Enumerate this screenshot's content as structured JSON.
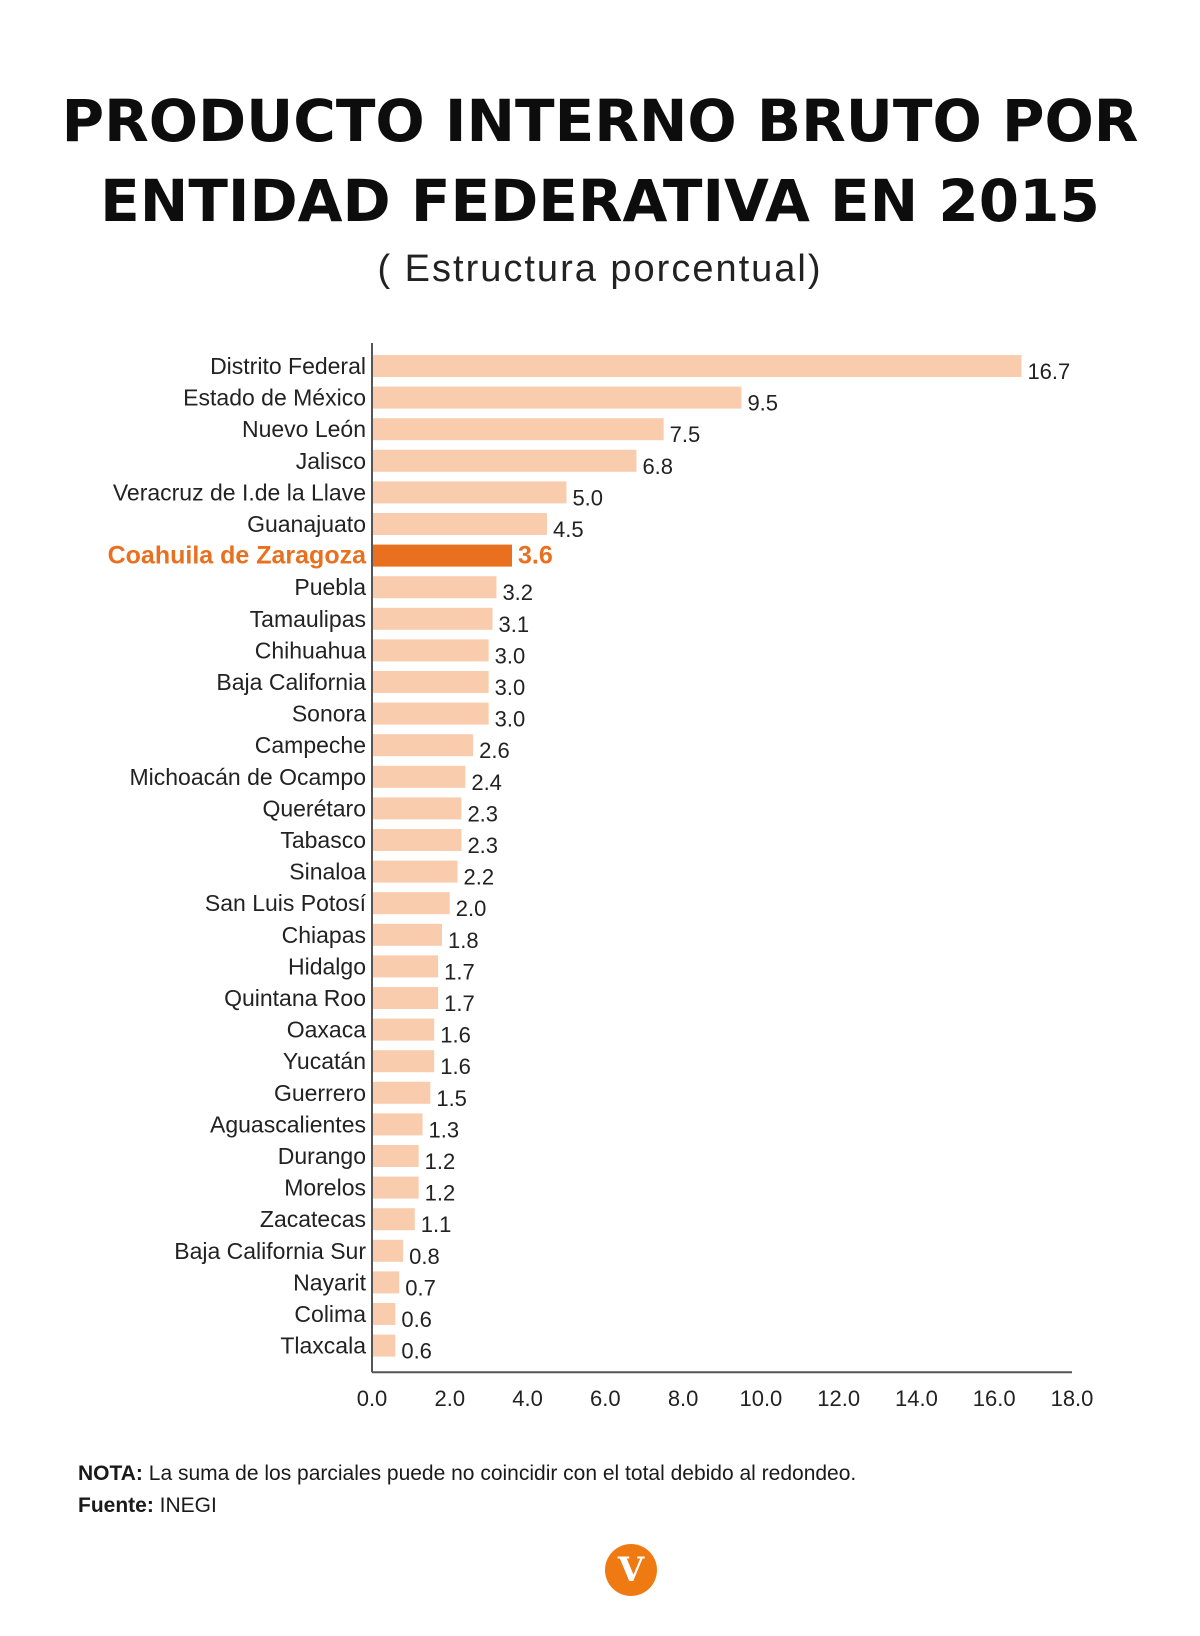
{
  "header": {
    "title_line_1": "PRODUCTO INTERNO BRUTO POR",
    "title_line_2": "ENTIDAD FEDERATIVA EN 2015",
    "subtitle": "( Estructura porcentual)"
  },
  "colors": {
    "bar": "#f9ccad",
    "highlight": "#e8701f",
    "axis": "#555555",
    "logo": "#f07a12"
  },
  "chart_data": {
    "type": "bar",
    "orientation": "horizontal",
    "title": "PRODUCTO INTERNO BRUTO POR ENTIDAD FEDERATIVA EN 2015",
    "subtitle": "( Estructura porcentual)",
    "xlabel": "",
    "ylabel": "",
    "xlim": [
      0,
      18
    ],
    "grid": false,
    "highlight_category": "Coahuila de Zaragoza",
    "x_ticks": [
      "0.0",
      "2.0",
      "4.0",
      "6.0",
      "8.0",
      "10.0",
      "12.0",
      "14.0",
      "16.0",
      "18.0"
    ],
    "categories": [
      "Distrito Federal",
      "Estado de México",
      "Nuevo León",
      "Jalisco",
      "Veracruz de I.de la Llave",
      "Guanajuato",
      "Coahuila de Zaragoza",
      "Puebla",
      "Tamaulipas",
      "Chihuahua",
      "Baja California",
      "Sonora",
      "Campeche",
      "Michoacán de Ocampo",
      "Querétaro",
      "Tabasco",
      "Sinaloa",
      "San Luis Potosí",
      "Chiapas",
      "Hidalgo",
      "Quintana Roo",
      "Oaxaca",
      "Yucatán",
      "Guerrero",
      "Aguascalientes",
      "Durango",
      "Morelos",
      "Zacatecas",
      "Baja California Sur",
      "Nayarit",
      "Colima",
      "Tlaxcala"
    ],
    "values": [
      16.7,
      9.5,
      7.5,
      6.8,
      5.0,
      4.5,
      3.6,
      3.2,
      3.1,
      3.0,
      3.0,
      3.0,
      2.6,
      2.4,
      2.3,
      2.3,
      2.2,
      2.0,
      1.8,
      1.7,
      1.7,
      1.6,
      1.6,
      1.5,
      1.3,
      1.2,
      1.2,
      1.1,
      0.8,
      0.7,
      0.6,
      0.6
    ],
    "value_labels": [
      "16.7",
      "9.5",
      "7.5",
      "6.8",
      "5.0",
      "4.5",
      "3.6",
      "3.2",
      "3.1",
      "3.0",
      "3.0",
      "3.0",
      "2.6",
      "2.4",
      "2.3",
      "2.3",
      "2.2",
      "2.0",
      "1.8",
      "1.7",
      "1.7",
      "1.6",
      "1.6",
      "1.5",
      "1.3",
      "1.2",
      "1.2",
      "1.1",
      "0.8",
      "0.7",
      "0.6",
      "0.6"
    ]
  },
  "footer": {
    "note_label": "NOTA:",
    "note_text": " La suma de los parciales puede no coincidir con el total debido al redondeo.",
    "source_label": "Fuente:",
    "source_text": " INEGI"
  },
  "logo": {
    "letter": "V"
  }
}
